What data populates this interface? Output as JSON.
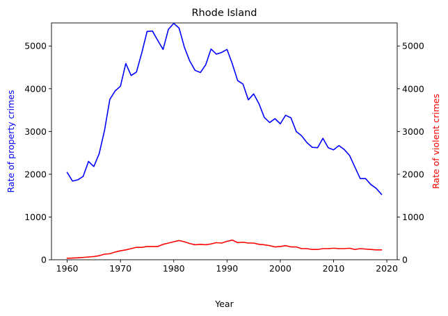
{
  "chart_data": {
    "type": "line",
    "title": "Rhode Island",
    "xlabel": "Year",
    "ylabel": "Rate of property crimes",
    "ylabel_right": "Rate of violent crimes",
    "xlim": [
      1957.05,
      2021.95
    ],
    "ylim": [
      0,
      5540
    ],
    "ylim_right": [
      0,
      5540
    ],
    "x_ticks": [
      1960,
      1970,
      1980,
      1990,
      2000,
      2010,
      2020
    ],
    "y_ticks": [
      0,
      1000,
      2000,
      3000,
      4000,
      5000
    ],
    "y_ticks_right": [
      0,
      1000,
      2000,
      3000,
      4000,
      5000
    ],
    "grid": false,
    "x": [
      1960,
      1961,
      1962,
      1963,
      1964,
      1965,
      1966,
      1967,
      1968,
      1969,
      1970,
      1971,
      1972,
      1973,
      1974,
      1975,
      1976,
      1977,
      1978,
      1979,
      1980,
      1981,
      1982,
      1983,
      1984,
      1985,
      1986,
      1987,
      1988,
      1989,
      1990,
      1991,
      1992,
      1993,
      1994,
      1995,
      1996,
      1997,
      1998,
      1999,
      2000,
      2001,
      2002,
      2003,
      2004,
      2005,
      2006,
      2007,
      2008,
      2009,
      2010,
      2011,
      2012,
      2013,
      2014,
      2015,
      2016,
      2017,
      2018,
      2019
    ],
    "series": [
      {
        "axis": "left",
        "color": "#0000ff",
        "values": [
          2040,
          1840,
          1870,
          1950,
          2300,
          2180,
          2480,
          3020,
          3750,
          3950,
          4060,
          4590,
          4310,
          4390,
          4840,
          5340,
          5350,
          5130,
          4920,
          5390,
          5530,
          5420,
          4970,
          4650,
          4430,
          4380,
          4560,
          4930,
          4810,
          4850,
          4920,
          4580,
          4190,
          4110,
          3740,
          3880,
          3650,
          3330,
          3210,
          3300,
          3180,
          3380,
          3320,
          3000,
          2900,
          2740,
          2630,
          2620,
          2840,
          2620,
          2570,
          2670,
          2580,
          2440,
          2170,
          1900,
          1900,
          1760,
          1670,
          1530
        ]
      },
      {
        "axis": "right",
        "color": "#ff0000",
        "values": [
          35,
          40,
          45,
          55,
          65,
          75,
          95,
          130,
          140,
          180,
          210,
          230,
          260,
          290,
          290,
          310,
          310,
          310,
          360,
          390,
          420,
          450,
          420,
          380,
          350,
          360,
          350,
          370,
          400,
          390,
          430,
          460,
          400,
          410,
          390,
          390,
          360,
          350,
          330,
          300,
          310,
          330,
          300,
          300,
          260,
          260,
          240,
          240,
          260,
          260,
          270,
          260,
          260,
          270,
          240,
          260,
          250,
          240,
          230,
          230
        ]
      }
    ]
  }
}
